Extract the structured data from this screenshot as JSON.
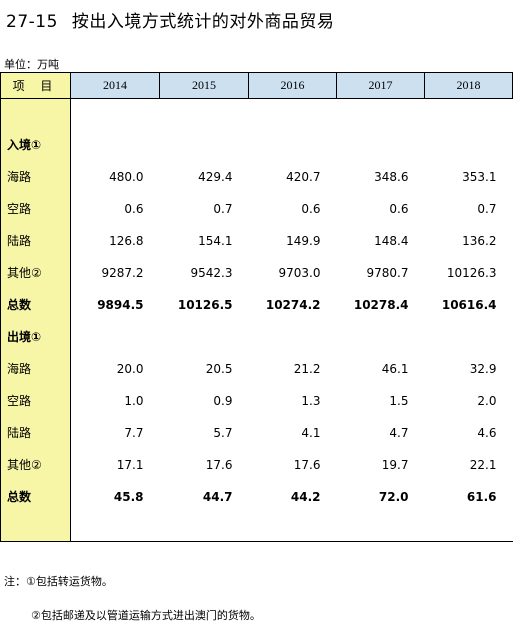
{
  "title": {
    "number": "27-15",
    "text": "按出入境方式统计的对外商品贸易"
  },
  "unit": "单位：万吨",
  "table": {
    "item_header": "项 目",
    "years": [
      "2014",
      "2015",
      "2016",
      "2017",
      "2018"
    ],
    "sections": [
      {
        "label": "入境①",
        "rows": [
          {
            "label": "海路",
            "values": [
              "480.0",
              "429.4",
              "420.7",
              "348.6",
              "353.1"
            ]
          },
          {
            "label": "空路",
            "values": [
              "0.6",
              "0.7",
              "0.6",
              "0.6",
              "0.7"
            ]
          },
          {
            "label": "陆路",
            "values": [
              "126.8",
              "154.1",
              "149.9",
              "148.4",
              "136.2"
            ]
          },
          {
            "label": "其他②",
            "values": [
              "9287.2",
              "9542.3",
              "9703.0",
              "9780.7",
              "10126.3"
            ]
          }
        ],
        "total": {
          "label": "总数",
          "values": [
            "9894.5",
            "10126.5",
            "10274.2",
            "10278.4",
            "10616.4"
          ]
        }
      },
      {
        "label": "出境①",
        "rows": [
          {
            "label": "海路",
            "values": [
              "20.0",
              "20.5",
              "21.2",
              "46.1",
              "32.9"
            ]
          },
          {
            "label": "空路",
            "values": [
              "1.0",
              "0.9",
              "1.3",
              "1.5",
              "2.0"
            ]
          },
          {
            "label": "陆路",
            "values": [
              "7.7",
              "5.7",
              "4.1",
              "4.7",
              "4.6"
            ]
          },
          {
            "label": "其他②",
            "values": [
              "17.1",
              "17.6",
              "17.6",
              "19.7",
              "22.1"
            ]
          }
        ],
        "total": {
          "label": "总数",
          "values": [
            "45.8",
            "44.7",
            "44.2",
            "72.0",
            "61.6"
          ]
        }
      }
    ]
  },
  "notes": {
    "note1": "注：①包括转运货物。",
    "note2": "②包括邮递及以管道运输方式进出澳门的货物。"
  },
  "colors": {
    "header_blue": "#cde0f0",
    "label_yellow": "#f7f5a6"
  }
}
